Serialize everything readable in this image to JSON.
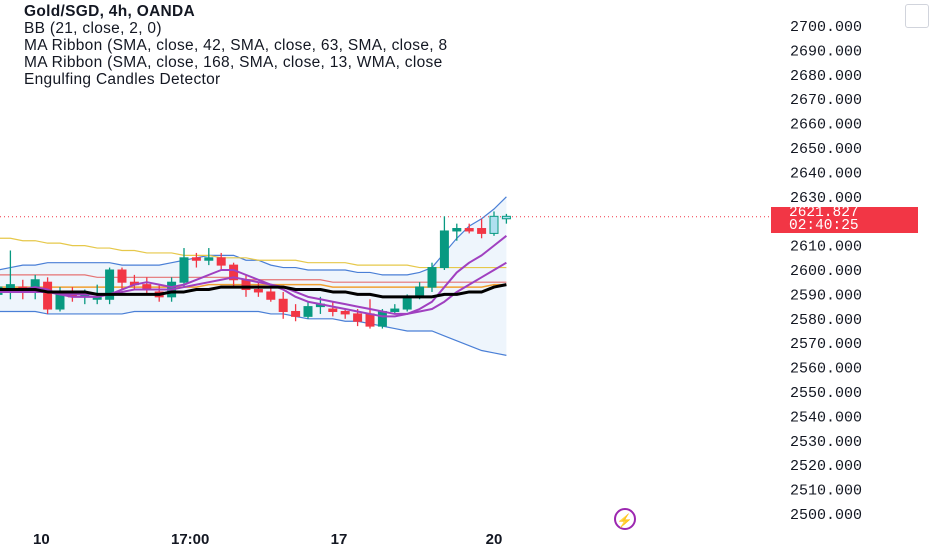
{
  "legend": {
    "title": "Gold/SGD, 4h, OANDA",
    "lines": [
      "BB (21, close, 2, 0)",
      "MA Ribbon (SMA, close, 42, SMA, close, 63, SMA, close, 8",
      "MA Ribbon (SMA, close, 168, SMA, close, 13, WMA, close",
      "Engulfing Candles Detector"
    ]
  },
  "price_tag": {
    "price": "2621.827",
    "countdown": "02:40:25",
    "color": "#f23645"
  },
  "icons": {
    "alert": "lightning-bolt-icon",
    "corner": "settings-square-icon"
  },
  "colors": {
    "up": "#089981",
    "down": "#f23645",
    "bb_band": "#4a7fd6",
    "bb_fill": "#e3eefa",
    "ma_black": "#000000",
    "ma_purple": "#a040c0",
    "ma_orange": "#f0a030",
    "ma_yellow": "#e6c84a",
    "ma_red": "#e57373"
  },
  "chart_data": {
    "type": "candlestick",
    "ylim": [
      2495,
      2710
    ],
    "y_ticks": [
      "2500.000",
      "2510.000",
      "2520.000",
      "2530.000",
      "2540.000",
      "2550.000",
      "2560.000",
      "2570.000",
      "2580.000",
      "2590.000",
      "2600.000",
      "2610.000",
      "2620.000",
      "2630.000",
      "2640.000",
      "2650.000",
      "2660.000",
      "2670.000",
      "2680.000",
      "2690.000",
      "2700.000"
    ],
    "y_tick_values": [
      2500,
      2510,
      2520,
      2530,
      2540,
      2550,
      2560,
      2570,
      2580,
      2590,
      2600,
      2610,
      2620,
      2630,
      2640,
      2650,
      2660,
      2670,
      2680,
      2690,
      2700
    ],
    "x_ticks": [
      {
        "label": "10",
        "bar": 3.5
      },
      {
        "label": "17:00",
        "bar": 15.5
      },
      {
        "label": "17",
        "bar": 27.5
      },
      {
        "label": "20",
        "bar": 40
      }
    ],
    "last_price": 2621.827,
    "candles": [
      {
        "o": 2590,
        "h": 2596,
        "l": 2586,
        "c": 2593
      },
      {
        "o": 2592,
        "h": 2608,
        "l": 2588,
        "c": 2594
      },
      {
        "o": 2593,
        "h": 2596,
        "l": 2588,
        "c": 2591
      },
      {
        "o": 2592,
        "h": 2598,
        "l": 2588,
        "c": 2596
      },
      {
        "o": 2595,
        "h": 2597,
        "l": 2582,
        "c": 2584
      },
      {
        "o": 2584,
        "h": 2593,
        "l": 2583,
        "c": 2591
      },
      {
        "o": 2591,
        "h": 2593,
        "l": 2587,
        "c": 2589
      },
      {
        "o": 2589,
        "h": 2592,
        "l": 2586,
        "c": 2590
      },
      {
        "o": 2588,
        "h": 2594,
        "l": 2586,
        "c": 2589
      },
      {
        "o": 2588,
        "h": 2601,
        "l": 2586,
        "c": 2600
      },
      {
        "o": 2600,
        "h": 2601,
        "l": 2592,
        "c": 2595
      },
      {
        "o": 2595,
        "h": 2598,
        "l": 2592,
        "c": 2594
      },
      {
        "o": 2594,
        "h": 2597,
        "l": 2590,
        "c": 2592
      },
      {
        "o": 2591,
        "h": 2594,
        "l": 2587,
        "c": 2589
      },
      {
        "o": 2589,
        "h": 2597,
        "l": 2587,
        "c": 2595
      },
      {
        "o": 2595,
        "h": 2609,
        "l": 2593,
        "c": 2605
      },
      {
        "o": 2605,
        "h": 2607,
        "l": 2601,
        "c": 2604
      },
      {
        "o": 2604,
        "h": 2609,
        "l": 2602,
        "c": 2605
      },
      {
        "o": 2605,
        "h": 2607,
        "l": 2600,
        "c": 2602
      },
      {
        "o": 2602,
        "h": 2603,
        "l": 2593,
        "c": 2596
      },
      {
        "o": 2596,
        "h": 2598,
        "l": 2589,
        "c": 2592
      },
      {
        "o": 2592,
        "h": 2595,
        "l": 2589,
        "c": 2591
      },
      {
        "o": 2591,
        "h": 2593,
        "l": 2587,
        "c": 2588
      },
      {
        "o": 2588,
        "h": 2591,
        "l": 2580,
        "c": 2583
      },
      {
        "o": 2583,
        "h": 2586,
        "l": 2579,
        "c": 2581
      },
      {
        "o": 2581,
        "h": 2587,
        "l": 2580,
        "c": 2585
      },
      {
        "o": 2585,
        "h": 2589,
        "l": 2582,
        "c": 2586
      },
      {
        "o": 2584,
        "h": 2587,
        "l": 2581,
        "c": 2583
      },
      {
        "o": 2583,
        "h": 2584,
        "l": 2580,
        "c": 2582
      },
      {
        "o": 2582,
        "h": 2584,
        "l": 2577,
        "c": 2579
      },
      {
        "o": 2582,
        "h": 2588,
        "l": 2576,
        "c": 2577
      },
      {
        "o": 2577,
        "h": 2584,
        "l": 2576,
        "c": 2583
      },
      {
        "o": 2583,
        "h": 2586,
        "l": 2582,
        "c": 2584
      },
      {
        "o": 2584,
        "h": 2590,
        "l": 2583,
        "c": 2589
      },
      {
        "o": 2589,
        "h": 2595,
        "l": 2588,
        "c": 2593
      },
      {
        "o": 2593,
        "h": 2603,
        "l": 2591,
        "c": 2601
      },
      {
        "o": 2601,
        "h": 2622,
        "l": 2600,
        "c": 2616
      },
      {
        "o": 2616,
        "h": 2619,
        "l": 2612,
        "c": 2617
      },
      {
        "o": 2617,
        "h": 2619,
        "l": 2615,
        "c": 2616
      },
      {
        "o": 2617,
        "h": 2621,
        "l": 2613,
        "c": 2615
      },
      {
        "o": 2615,
        "h": 2624,
        "l": 2614,
        "c": 2622
      },
      {
        "o": 2621,
        "h": 2623,
        "l": 2619,
        "c": 2622
      }
    ],
    "series": [
      {
        "key": "bb_upper",
        "values": [
          2600,
          2601,
          2602,
          2602,
          2603,
          2603,
          2603,
          2603,
          2603,
          2603,
          2602,
          2602,
          2602,
          2602,
          2603,
          2604,
          2605,
          2606,
          2606,
          2606,
          2604,
          2604,
          2602,
          2601,
          2601,
          2600,
          2600,
          2600,
          2600,
          2599,
          2599,
          2598,
          2598,
          2598,
          2599,
          2601,
          2607,
          2613,
          2618,
          2621,
          2625,
          2630
        ]
      },
      {
        "key": "bb_lower",
        "values": [
          2583,
          2583,
          2583,
          2583,
          2582,
          2582,
          2582,
          2582,
          2582,
          2582,
          2582,
          2583,
          2583,
          2583,
          2583,
          2583,
          2583,
          2583,
          2583,
          2583,
          2583,
          2583,
          2582,
          2582,
          2581,
          2580,
          2580,
          2580,
          2579,
          2579,
          2578,
          2577,
          2576,
          2575,
          2575,
          2575,
          2573,
          2571,
          2569,
          2567,
          2566,
          2565
        ]
      },
      {
        "key": "ma_black",
        "values": [
          2592,
          2592,
          2592,
          2592,
          2591,
          2591,
          2591,
          2591,
          2590,
          2590,
          2590,
          2590,
          2590,
          2590,
          2591,
          2591,
          2592,
          2592,
          2593,
          2593,
          2593,
          2593,
          2593,
          2593,
          2592,
          2592,
          2592,
          2591,
          2591,
          2590,
          2590,
          2589,
          2589,
          2589,
          2589,
          2589,
          2590,
          2590,
          2591,
          2591,
          2593,
          2594
        ]
      },
      {
        "key": "ma_purple_1",
        "values": [
          2592,
          2592,
          2592,
          2593,
          2592,
          2590,
          2589,
          2589,
          2589,
          2590,
          2592,
          2594,
          2595,
          2594,
          2593,
          2594,
          2596,
          2598,
          2600,
          2600,
          2598,
          2596,
          2594,
          2592,
          2589,
          2587,
          2586,
          2585,
          2584,
          2583,
          2582,
          2581,
          2581,
          2582,
          2584,
          2587,
          2593,
          2599,
          2603,
          2606,
          2610,
          2614
        ]
      },
      {
        "key": "ma_purple_2",
        "values": [
          2591,
          2591,
          2591,
          2591,
          2591,
          2590,
          2590,
          2590,
          2590,
          2590,
          2591,
          2592,
          2592,
          2592,
          2592,
          2593,
          2594,
          2595,
          2596,
          2597,
          2596,
          2595,
          2594,
          2593,
          2591,
          2589,
          2588,
          2587,
          2586,
          2585,
          2584,
          2583,
          2582,
          2582,
          2583,
          2584,
          2587,
          2591,
          2594,
          2597,
          2600,
          2603
        ]
      },
      {
        "key": "ma_orange",
        "values": [
          2593,
          2593,
          2593,
          2593,
          2593,
          2593,
          2593,
          2593,
          2593,
          2593,
          2593,
          2593,
          2593,
          2593,
          2593,
          2593,
          2593,
          2594,
          2594,
          2594,
          2594,
          2594,
          2594,
          2594,
          2594,
          2594,
          2594,
          2593,
          2593,
          2593,
          2593,
          2593,
          2593,
          2593,
          2593,
          2593,
          2593,
          2593,
          2593,
          2593,
          2594,
          2594
        ]
      },
      {
        "key": "ma_red",
        "values": [
          2598,
          2598,
          2598,
          2598,
          2598,
          2598,
          2598,
          2598,
          2597,
          2597,
          2597,
          2597,
          2597,
          2597,
          2597,
          2597,
          2597,
          2597,
          2597,
          2597,
          2596,
          2596,
          2596,
          2596,
          2596,
          2596,
          2596,
          2595,
          2595,
          2595,
          2595,
          2595,
          2595,
          2595,
          2595,
          2595,
          2595,
          2595,
          2595,
          2595,
          2595,
          2595
        ]
      },
      {
        "key": "ma_yellow",
        "values": [
          2613,
          2613,
          2612,
          2612,
          2611,
          2611,
          2610,
          2610,
          2609,
          2609,
          2608,
          2608,
          2607,
          2607,
          2607,
          2606,
          2606,
          2606,
          2605,
          2605,
          2605,
          2604,
          2604,
          2604,
          2604,
          2603,
          2603,
          2603,
          2603,
          2602,
          2602,
          2602,
          2602,
          2602,
          2601,
          2601,
          2601,
          2601,
          2601,
          2601,
          2601,
          2601
        ]
      }
    ]
  }
}
